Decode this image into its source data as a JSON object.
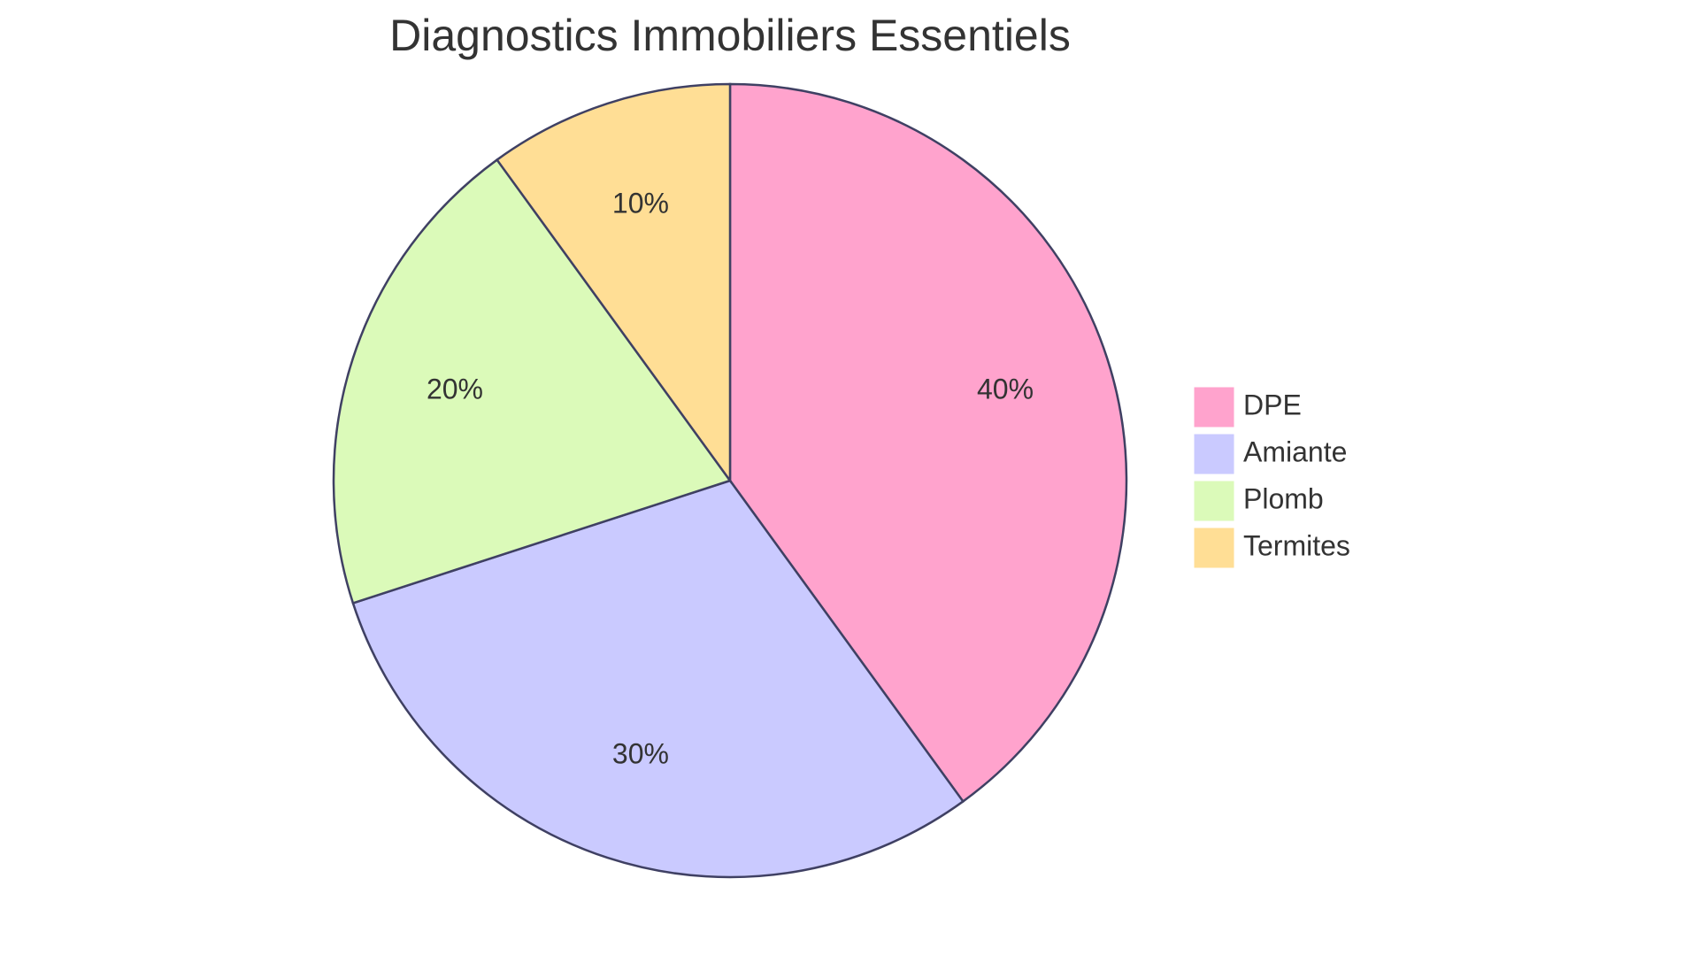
{
  "chart_data": {
    "type": "pie",
    "title": "Diagnostics Immobiliers Essentiels",
    "slices": [
      {
        "label": "DPE",
        "value": 40,
        "display": "40%",
        "color": "#FFA3CD"
      },
      {
        "label": "Amiante",
        "value": 30,
        "display": "30%",
        "color": "#CACAFF"
      },
      {
        "label": "Plomb",
        "value": 20,
        "display": "20%",
        "color": "#DBFAB9"
      },
      {
        "label": "Termites",
        "value": 10,
        "display": "10%",
        "color": "#FFDE95"
      }
    ],
    "legend_position": "right",
    "stroke_color": "#3F4063"
  }
}
